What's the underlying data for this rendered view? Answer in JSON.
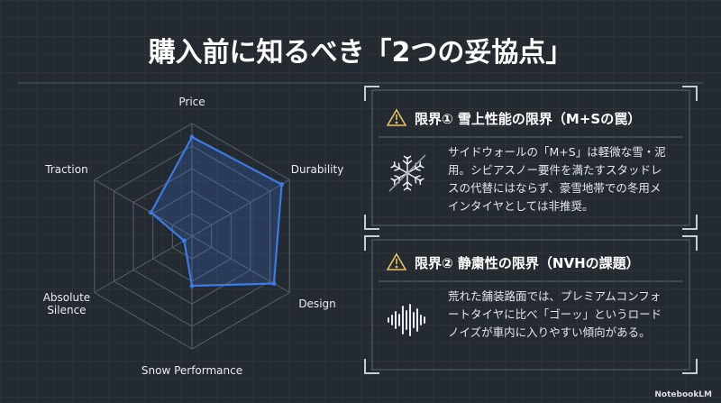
{
  "title": "購入前に知るべき「2つの妥協点」",
  "chart_data": {
    "type": "radar",
    "categories": [
      "Price",
      "Durability",
      "Design",
      "Snow Performance",
      "Absolute Silence",
      "Traction"
    ],
    "values": [
      4.4,
      4.6,
      4.2,
      2.2,
      0.4,
      2.1
    ],
    "color": "#3b7be3",
    "rlim": [
      0,
      5
    ],
    "rticks": [
      1,
      2,
      3,
      4,
      5
    ],
    "grid": true
  },
  "panels": [
    {
      "title": "限界① 雪上性能の限界（M+Sの罠）",
      "body": [
        "サイドウォールの「M+S」は軽微な雪・泥",
        "用。シビアスノー要件を満たすスタッドレ",
        "スの代替にはならず、豪雪地帯での冬用メ",
        "インタイヤとしては非推奨。"
      ]
    },
    {
      "title": "限界② 静粛性の限界（NVHの課題）",
      "body": [
        "荒れた舗装路面では、プレミアムコンフォ",
        "ートタイヤに比べ「ゴーッ」というロード",
        "ノイズが車内に入りやすい傾向がある。"
      ]
    }
  ],
  "footer": "NotebookLM"
}
